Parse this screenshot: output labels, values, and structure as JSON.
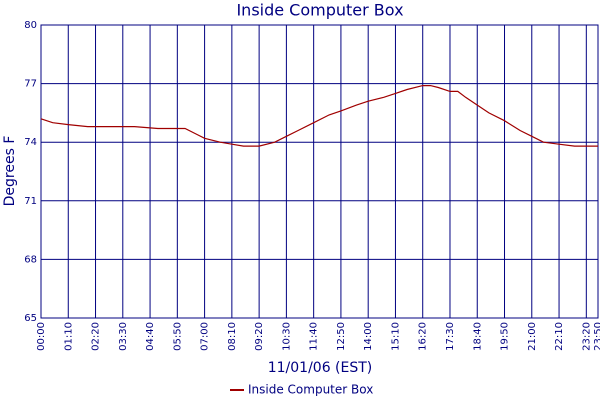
{
  "chart_data": {
    "type": "line",
    "title": "Inside Computer Box",
    "x_label": "11/01/06 (EST)",
    "y_label": "Degrees F",
    "x": [
      "00:00",
      "00:30",
      "01:10",
      "02:00",
      "03:00",
      "04:00",
      "05:00",
      "05:50",
      "06:10",
      "06:40",
      "07:00",
      "07:40",
      "08:10",
      "08:40",
      "09:20",
      "10:00",
      "10:30",
      "11:00",
      "11:40",
      "12:20",
      "12:50",
      "13:30",
      "14:00",
      "14:40",
      "15:10",
      "15:40",
      "16:20",
      "16:40",
      "17:00",
      "17:30",
      "17:50",
      "18:10",
      "18:40",
      "19:10",
      "19:50",
      "20:30",
      "21:00",
      "21:30",
      "22:10",
      "22:50",
      "23:20",
      "23:50"
    ],
    "series": [
      {
        "name": "Inside Computer Box",
        "color": "#a00000",
        "values": [
          75.2,
          75.0,
          74.9,
          74.8,
          74.8,
          74.8,
          74.7,
          74.7,
          74.7,
          74.4,
          74.2,
          74.0,
          73.9,
          73.8,
          73.8,
          74.0,
          74.3,
          74.6,
          75.0,
          75.4,
          75.6,
          75.9,
          76.1,
          76.3,
          76.5,
          76.7,
          76.9,
          76.9,
          76.8,
          76.6,
          76.6,
          76.3,
          75.9,
          75.5,
          75.1,
          74.6,
          74.3,
          74.0,
          73.9,
          73.8,
          73.8,
          73.8
        ]
      }
    ],
    "xlim": [
      "00:00",
      "23:50"
    ],
    "xticks": [
      "00:00",
      "01:10",
      "02:20",
      "03:30",
      "04:40",
      "05:50",
      "07:00",
      "08:10",
      "09:20",
      "10:30",
      "11:40",
      "12:50",
      "14:00",
      "15:10",
      "16:20",
      "17:30",
      "18:40",
      "19:50",
      "21:00",
      "22:10",
      "23:20",
      "23:50"
    ],
    "ylim": [
      65,
      80
    ],
    "yticks": [
      65,
      68,
      71,
      74,
      77,
      80
    ],
    "grid": true,
    "legend": "bottom"
  }
}
